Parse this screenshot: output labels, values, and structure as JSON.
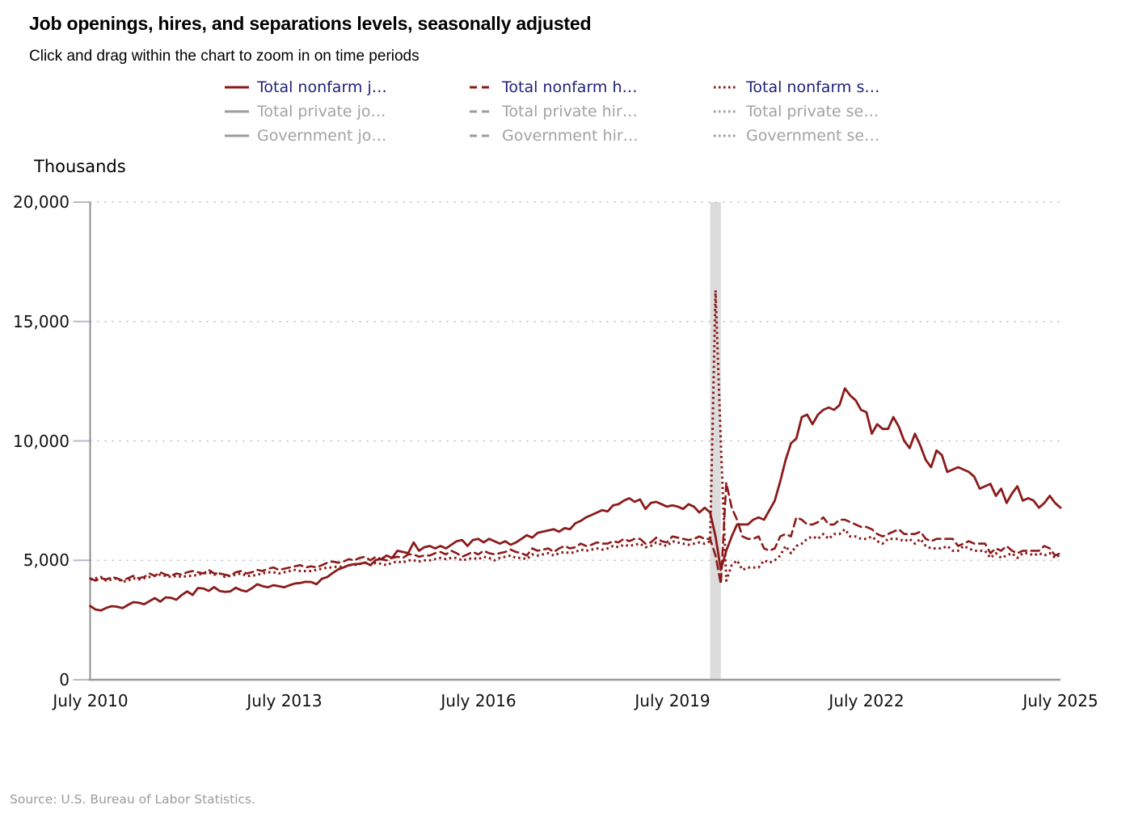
{
  "header": {
    "title": "Job openings, hires, and separations levels, seasonally adjusted",
    "subtitle": "Click and drag within the chart to zoom in on time periods"
  },
  "legend": {
    "items": [
      {
        "label": "Total nonfarm j…",
        "pattern": "solid",
        "state": "active"
      },
      {
        "label": "Total nonfarm h…",
        "pattern": "dashed",
        "state": "active"
      },
      {
        "label": "Total nonfarm s…",
        "pattern": "dotted",
        "state": "active"
      },
      {
        "label": "Total private jo…",
        "pattern": "solid",
        "state": "inactive"
      },
      {
        "label": "Total private hir…",
        "pattern": "dashed",
        "state": "inactive"
      },
      {
        "label": "Total private se…",
        "pattern": "dotted",
        "state": "inactive"
      },
      {
        "label": "Government jo…",
        "pattern": "solid",
        "state": "inactive"
      },
      {
        "label": "Government hir…",
        "pattern": "dashed",
        "state": "inactive"
      },
      {
        "label": "Government se…",
        "pattern": "dotted",
        "state": "inactive"
      }
    ]
  },
  "footer": {
    "source": "Source: U.S. Bureau of Labor Statistics."
  },
  "colors": {
    "series": "#8b1a1a",
    "inactive_swatch": "#9c9c9c",
    "legend_active_text": "#1f1f78",
    "legend_inactive_text": "#a2a2a2",
    "recession_band": "#dcdcdc",
    "gridline": "#b9b9b9",
    "axis": "#909090"
  },
  "chart_data": {
    "type": "line",
    "title": "Job openings, hires, and separations levels, seasonally adjusted",
    "xlabel": "",
    "ylabel": "Thousands",
    "ylim": [
      0,
      20000
    ],
    "ytick_labels": [
      "20,000",
      "15,000",
      "10,000",
      "5,000",
      "0"
    ],
    "ytick_values": [
      20000,
      15000,
      10000,
      5000,
      0
    ],
    "xtick_labels": [
      "July 2010",
      "July 2013",
      "July 2016",
      "July 2019",
      "July 2022",
      "July 2025"
    ],
    "xtick_month_indices": [
      0,
      36,
      72,
      108,
      144,
      180
    ],
    "x_start": "2010-07",
    "x_end": "2025-07",
    "grid": "horizontal-dotted",
    "legend_position": "top",
    "recession_band": {
      "start_index": 115,
      "end_index": 117,
      "label": "2020 recession shading"
    },
    "series": [
      {
        "name": "Total nonfarm j…",
        "style": "solid",
        "color": "#8b1a1a",
        "values": [
          3090,
          2940,
          2900,
          3010,
          3080,
          3060,
          3000,
          3130,
          3250,
          3230,
          3160,
          3290,
          3420,
          3270,
          3450,
          3430,
          3350,
          3550,
          3700,
          3550,
          3840,
          3820,
          3720,
          3880,
          3720,
          3680,
          3700,
          3850,
          3750,
          3700,
          3830,
          4000,
          3920,
          3870,
          3960,
          3920,
          3870,
          3960,
          4030,
          4050,
          4100,
          4090,
          4000,
          4230,
          4300,
          4470,
          4620,
          4700,
          4800,
          4840,
          4850,
          4910,
          4800,
          5020,
          5050,
          5200,
          5100,
          5400,
          5350,
          5300,
          5750,
          5400,
          5550,
          5600,
          5500,
          5600,
          5500,
          5650,
          5800,
          5850,
          5600,
          5850,
          5900,
          5750,
          5900,
          5800,
          5700,
          5800,
          5650,
          5750,
          5900,
          6050,
          5950,
          6150,
          6200,
          6250,
          6300,
          6200,
          6350,
          6300,
          6550,
          6650,
          6800,
          6900,
          7000,
          7100,
          7050,
          7300,
          7350,
          7500,
          7600,
          7450,
          7550,
          7150,
          7400,
          7450,
          7350,
          7250,
          7300,
          7250,
          7150,
          7350,
          7250,
          7000,
          7200,
          7000,
          6000,
          4600,
          5400,
          6000,
          6500,
          6500,
          6500,
          6700,
          6800,
          6700,
          7100,
          7500,
          8300,
          9200,
          9900,
          10100,
          11000,
          11100,
          10700,
          11100,
          11300,
          11400,
          11300,
          11500,
          12200,
          11900,
          11700,
          11300,
          11200,
          10300,
          10700,
          10500,
          10500,
          11000,
          10600,
          10000,
          9700,
          10300,
          9800,
          9200,
          8900,
          9600,
          9400,
          8700,
          8800,
          8900,
          8800,
          8700,
          8500,
          8000,
          8100,
          8200,
          7700,
          8000,
          7400,
          7800,
          8100,
          7500,
          7600,
          7500,
          7200,
          7400,
          7700,
          7400,
          7200
        ]
      },
      {
        "name": "Total nonfarm h…",
        "style": "dashed",
        "color": "#8b1a1a",
        "values": [
          4250,
          4150,
          4250,
          4200,
          4300,
          4250,
          4150,
          4250,
          4350,
          4250,
          4300,
          4450,
          4350,
          4500,
          4400,
          4350,
          4450,
          4400,
          4500,
          4550,
          4500,
          4450,
          4600,
          4450,
          4450,
          4400,
          4350,
          4500,
          4550,
          4450,
          4500,
          4600,
          4550,
          4650,
          4700,
          4600,
          4650,
          4700,
          4750,
          4800,
          4700,
          4750,
          4700,
          4800,
          4900,
          4950,
          4900,
          4950,
          5050,
          5000,
          5100,
          5150,
          5000,
          5150,
          5050,
          5000,
          5100,
          5150,
          5100,
          5250,
          5250,
          5150,
          5200,
          5200,
          5300,
          5350,
          5250,
          5400,
          5300,
          5150,
          5250,
          5350,
          5250,
          5400,
          5300,
          5250,
          5300,
          5350,
          5450,
          5350,
          5300,
          5200,
          5500,
          5400,
          5450,
          5500,
          5350,
          5500,
          5600,
          5500,
          5550,
          5700,
          5600,
          5650,
          5750,
          5700,
          5700,
          5800,
          5750,
          5900,
          5800,
          5900,
          5900,
          5700,
          5750,
          5950,
          5800,
          5750,
          6000,
          5950,
          5900,
          5850,
          5900,
          6000,
          5900,
          5900,
          5200,
          4000,
          8250,
          7200,
          6700,
          6000,
          5900,
          5900,
          6000,
          5500,
          5400,
          5500,
          6000,
          6100,
          6000,
          6800,
          6700,
          6500,
          6500,
          6600,
          6800,
          6500,
          6500,
          6700,
          6700,
          6600,
          6500,
          6400,
          6400,
          6300,
          6100,
          6000,
          6100,
          6200,
          6300,
          6100,
          6100,
          6100,
          6200,
          5900,
          5800,
          5900,
          5900,
          5900,
          5900,
          5600,
          5700,
          5800,
          5700,
          5700,
          5700,
          5300,
          5500,
          5400,
          5600,
          5400,
          5300,
          5400,
          5400,
          5400,
          5400,
          5600,
          5500,
          5200,
          5300
        ]
      },
      {
        "name": "Total nonfarm s…",
        "style": "dotted",
        "color": "#8b1a1a",
        "values": [
          4200,
          4250,
          4300,
          4150,
          4200,
          4250,
          4100,
          4150,
          4250,
          4200,
          4250,
          4300,
          4350,
          4400,
          4350,
          4300,
          4350,
          4300,
          4350,
          4350,
          4400,
          4450,
          4500,
          4400,
          4450,
          4300,
          4350,
          4400,
          4450,
          4350,
          4350,
          4400,
          4450,
          4500,
          4500,
          4450,
          4500,
          4550,
          4600,
          4550,
          4550,
          4550,
          4600,
          4650,
          4700,
          4700,
          4750,
          4700,
          4800,
          4800,
          4850,
          4900,
          4800,
          4900,
          4850,
          4800,
          4900,
          4950,
          4900,
          5000,
          5000,
          4950,
          5000,
          5000,
          5050,
          5100,
          5050,
          5100,
          5100,
          5000,
          5050,
          5100,
          5050,
          5150,
          5100,
          5000,
          5100,
          5150,
          5200,
          5100,
          5100,
          5050,
          5250,
          5200,
          5250,
          5300,
          5200,
          5300,
          5350,
          5300,
          5350,
          5450,
          5400,
          5450,
          5500,
          5450,
          5500,
          5600,
          5550,
          5650,
          5600,
          5650,
          5700,
          5550,
          5600,
          5750,
          5650,
          5600,
          5800,
          5750,
          5700,
          5650,
          5700,
          5750,
          5700,
          5800,
          16300,
          9900,
          4150,
          4800,
          5000,
          4600,
          4700,
          4700,
          4700,
          5000,
          4900,
          5000,
          5200,
          5600,
          5300,
          5600,
          5700,
          5900,
          6000,
          5900,
          6100,
          5900,
          6100,
          6100,
          6300,
          6000,
          6000,
          5900,
          5900,
          6000,
          5800,
          5700,
          5900,
          5900,
          5900,
          5800,
          5900,
          5700,
          5900,
          5600,
          5500,
          5500,
          5500,
          5600,
          5400,
          5400,
          5600,
          5500,
          5400,
          5400,
          5400,
          5100,
          5300,
          5100,
          5200,
          5300,
          5100,
          5300,
          5300,
          5200,
          5300,
          5200,
          5300,
          5100,
          5250
        ]
      }
    ]
  }
}
